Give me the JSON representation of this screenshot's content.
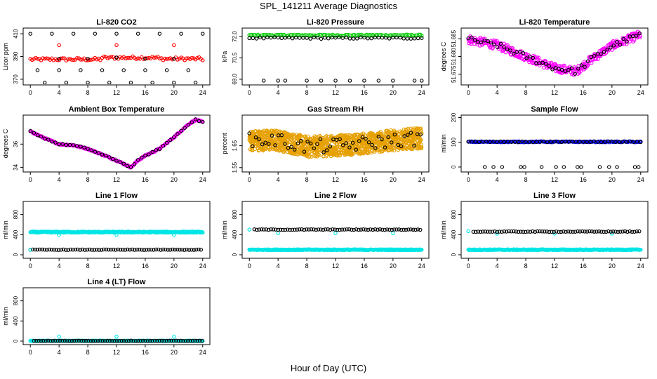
{
  "figure": {
    "title": "SPL_141211  Average Diagnostics",
    "xlabel": "Hour of Day (UTC)"
  },
  "chart_data": [
    {
      "type": "scatter",
      "title": "Li-820 CO2",
      "ylabel": "Licor ppm",
      "xlim": [
        -1,
        25
      ],
      "ylim": [
        365,
        415
      ],
      "xticks": [
        "0",
        "4",
        "8",
        "12",
        "16",
        "20",
        "24"
      ],
      "yticks": [
        "370",
        "390",
        "410"
      ],
      "grid": false,
      "series": [
        {
          "color": "#ff0000",
          "pattern": {
            "kind": "band",
            "x0": 0,
            "x1": 24,
            "step": 0.25,
            "base": 387.5,
            "amp": 2.0,
            "noise": 1.3,
            "segments": [
              [
                0,
                10,
                387.5
              ],
              [
                10,
                18,
                389
              ],
              [
                18,
                24,
                388
              ]
            ]
          }
        },
        {
          "color": "#ff0000",
          "points": [
            [
              4,
              400
            ],
            [
              12,
              400
            ],
            [
              20,
              400
            ]
          ]
        },
        {
          "color": "#000000",
          "pattern": {
            "kind": "levels",
            "x0": 0,
            "x1": 24,
            "step": 1.0,
            "levels": [
              410,
              378,
              367
            ]
          }
        },
        {
          "color": "#000000",
          "points": [
            [
              4,
              388
            ],
            [
              8,
              388
            ],
            [
              12,
              389
            ],
            [
              16,
              388
            ],
            [
              20,
              388
            ]
          ]
        }
      ]
    },
    {
      "type": "scatter",
      "title": "Li-820 Pressure",
      "ylabel": "kPa",
      "xlim": [
        -1,
        25
      ],
      "ylim": [
        68.6,
        72.6
      ],
      "xticks": [
        "0",
        "4",
        "8",
        "12",
        "16",
        "20",
        "24"
      ],
      "yticks": [
        "69.0",
        "70.5",
        "72.0"
      ],
      "grid": false,
      "series": [
        {
          "color": "#00cc00",
          "pattern": {
            "kind": "band",
            "x0": 0,
            "x1": 24,
            "step": 0.2,
            "base": 72.1,
            "amp": 0.05,
            "noise": 0.04
          }
        },
        {
          "color": "#000000",
          "pattern": {
            "kind": "band",
            "x0": 0,
            "x1": 24,
            "step": 0.5,
            "base": 71.9,
            "amp": 0.05,
            "noise": 0.06
          }
        },
        {
          "color": "#000000",
          "points": [
            [
              2,
              68.9
            ],
            [
              4,
              68.9
            ],
            [
              5,
              68.9
            ],
            [
              8,
              68.9
            ],
            [
              10,
              68.9
            ],
            [
              12,
              68.9
            ],
            [
              14,
              68.9
            ],
            [
              16,
              68.9
            ],
            [
              18,
              68.9
            ],
            [
              20,
              68.9
            ],
            [
              23,
              68.9
            ],
            [
              24,
              68.9
            ]
          ]
        }
      ]
    },
    {
      "type": "scatter",
      "title": "Li-820 Temperature",
      "ylabel": "degrees C",
      "xlim": [
        -1,
        25
      ],
      "ylim": [
        51.672,
        51.688
      ],
      "xticks": [
        "0",
        "4",
        "8",
        "12",
        "16",
        "20",
        "24"
      ],
      "yticks": [
        "51.675",
        "51.680",
        "51.685"
      ],
      "grid": false,
      "series": [
        {
          "color": "#ff00ff",
          "pattern": {
            "kind": "curve",
            "x0": 0,
            "x1": 24,
            "step": 0.07,
            "curve": [
              [
                0,
                51.6848
              ],
              [
                4,
                51.6832
              ],
              [
                8,
                51.68
              ],
              [
                12,
                51.6768
              ],
              [
                15,
                51.6758
              ],
              [
                17,
                51.679
              ],
              [
                20,
                51.683
              ],
              [
                24,
                51.6862
              ]
            ],
            "noise": 0.0024
          }
        },
        {
          "color": "#000000",
          "pattern": {
            "kind": "curve",
            "x0": 0,
            "x1": 24,
            "step": 0.45,
            "curve": [
              [
                0,
                51.6848
              ],
              [
                4,
                51.6832
              ],
              [
                8,
                51.68
              ],
              [
                12,
                51.6768
              ],
              [
                15,
                51.6758
              ],
              [
                17,
                51.679
              ],
              [
                20,
                51.683
              ],
              [
                24,
                51.6862
              ]
            ],
            "noise": 0.0016
          }
        }
      ]
    },
    {
      "type": "scatter",
      "title": "Ambient Box Temperature",
      "ylabel": "degrees C",
      "xlim": [
        -1,
        25
      ],
      "ylim": [
        33.6,
        38.5
      ],
      "xticks": [
        "0",
        "4",
        "8",
        "12",
        "16",
        "20",
        "24"
      ],
      "yticks": [
        "34",
        "36"
      ],
      "grid": false,
      "series": [
        {
          "color": "#ff00ff",
          "pattern": {
            "kind": "curve",
            "x0": 0,
            "x1": 24,
            "step": 0.1,
            "curve": [
              [
                0,
                37.1
              ],
              [
                2,
                36.5
              ],
              [
                4,
                36.0
              ],
              [
                6,
                35.9
              ],
              [
                8,
                35.6
              ],
              [
                10,
                35.1
              ],
              [
                12,
                34.6
              ],
              [
                14,
                34.0
              ],
              [
                15,
                34.6
              ],
              [
                16,
                35.0
              ],
              [
                18,
                35.6
              ],
              [
                20,
                36.6
              ],
              [
                22,
                37.7
              ],
              [
                23,
                38.1
              ],
              [
                24,
                37.9
              ]
            ],
            "noise": 0.12
          }
        },
        {
          "color": "#000000",
          "pattern": {
            "kind": "curve",
            "x0": 0,
            "x1": 24,
            "step": 0.5,
            "curve": [
              [
                0,
                37.1
              ],
              [
                2,
                36.5
              ],
              [
                4,
                36.0
              ],
              [
                6,
                35.9
              ],
              [
                8,
                35.6
              ],
              [
                10,
                35.1
              ],
              [
                12,
                34.6
              ],
              [
                14,
                34.0
              ],
              [
                15,
                34.6
              ],
              [
                16,
                35.0
              ],
              [
                18,
                35.6
              ],
              [
                20,
                36.6
              ],
              [
                22,
                37.7
              ],
              [
                23,
                38.1
              ],
              [
                24,
                37.9
              ]
            ],
            "noise": 0.08
          }
        }
      ]
    },
    {
      "type": "scatter",
      "title": "Gas Stream RH",
      "ylabel": "percent",
      "xlim": [
        -1,
        25
      ],
      "ylim": [
        1.53,
        1.79
      ],
      "xticks": [
        "0",
        "4",
        "8",
        "12",
        "16",
        "20",
        "24"
      ],
      "yticks": [
        "1.55",
        "1.65"
      ],
      "grid": false,
      "series": [
        {
          "color": "#e6a000",
          "pattern": {
            "kind": "curve",
            "x0": 0,
            "x1": 24,
            "step": 0.02,
            "curve": [
              [
                0,
                1.675
              ],
              [
                4,
                1.675
              ],
              [
                8,
                1.645
              ],
              [
                12,
                1.65
              ],
              [
                16,
                1.66
              ],
              [
                20,
                1.675
              ],
              [
                24,
                1.685
              ]
            ],
            "noise": 0.095
          }
        },
        {
          "color": "#000000",
          "pattern": {
            "kind": "curve",
            "x0": 0,
            "x1": 24,
            "step": 0.45,
            "curve": [
              [
                0,
                1.675
              ],
              [
                4,
                1.675
              ],
              [
                8,
                1.645
              ],
              [
                12,
                1.65
              ],
              [
                16,
                1.66
              ],
              [
                20,
                1.675
              ],
              [
                24,
                1.685
              ]
            ],
            "noise": 0.065
          }
        }
      ]
    },
    {
      "type": "scatter",
      "title": "Sample Flow",
      "ylabel": "ml/min",
      "xlim": [
        -1,
        25
      ],
      "ylim": [
        -20,
        210
      ],
      "xticks": [
        "0",
        "4",
        "8",
        "12",
        "16",
        "20",
        "24"
      ],
      "yticks": [
        "0",
        "100",
        "200"
      ],
      "grid": false,
      "series": [
        {
          "color": "#0000ff",
          "pattern": {
            "kind": "band",
            "x0": 0,
            "x1": 24,
            "step": 0.15,
            "base": 102,
            "amp": 0,
            "noise": 2
          }
        },
        {
          "color": "#000000",
          "pattern": {
            "kind": "band",
            "x0": 0,
            "x1": 24,
            "step": 0.5,
            "base": 102,
            "amp": 0,
            "noise": 1.5
          }
        },
        {
          "color": "#000000",
          "points": [
            [
              2.3,
              0
            ],
            [
              3.5,
              0
            ],
            [
              4.7,
              0
            ],
            [
              7.3,
              0
            ],
            [
              7.8,
              0
            ],
            [
              10.2,
              0
            ],
            [
              12.2,
              0
            ],
            [
              13.3,
              0
            ],
            [
              15.2,
              0
            ],
            [
              15.7,
              0
            ],
            [
              18.3,
              0
            ],
            [
              19.6,
              0
            ],
            [
              20.7,
              0
            ],
            [
              23.2,
              0
            ],
            [
              23.7,
              0
            ]
          ]
        }
      ]
    },
    {
      "type": "scatter",
      "title": "Line 1 Flow",
      "ylabel": "ml/min",
      "xlim": [
        -1,
        25
      ],
      "ylim": [
        -70,
        1060
      ],
      "xticks": [
        "0",
        "4",
        "8",
        "12",
        "16",
        "20",
        "24"
      ],
      "yticks": [
        "0",
        "400",
        "800"
      ],
      "grid": false,
      "series": [
        {
          "color": "#00e5e5",
          "pattern": {
            "kind": "band",
            "x0": 0,
            "x1": 24,
            "step": 0.08,
            "base": 450,
            "amp": 0,
            "noise": 12
          }
        },
        {
          "color": "#00e5e5",
          "points": [
            [
              4,
              395
            ],
            [
              12,
              395
            ],
            [
              20,
              395
            ]
          ]
        },
        {
          "color": "#000000",
          "pattern": {
            "kind": "band",
            "x0": 0,
            "x1": 24,
            "step": 0.33,
            "base": 100,
            "amp": 0,
            "noise": 5
          }
        },
        {
          "color": "#00e5e5",
          "points": [
            [
              0,
              100
            ]
          ]
        }
      ]
    },
    {
      "type": "scatter",
      "title": "Line 2 Flow",
      "ylabel": "ml/min",
      "xlim": [
        -1,
        25
      ],
      "ylim": [
        -70,
        1060
      ],
      "xticks": [
        "0",
        "4",
        "8",
        "12",
        "16",
        "20",
        "24"
      ],
      "yticks": [
        "0",
        "400",
        "800"
      ],
      "grid": false,
      "series": [
        {
          "color": "#00e5e5",
          "pattern": {
            "kind": "band",
            "x0": 0,
            "x1": 24,
            "step": 0.08,
            "base": 100,
            "amp": 0,
            "noise": 8
          }
        },
        {
          "color": "#00e5e5",
          "points": [
            [
              0,
              500
            ],
            [
              4,
              430
            ],
            [
              12,
              430
            ],
            [
              20,
              430
            ]
          ]
        },
        {
          "color": "#000000",
          "pattern": {
            "kind": "band",
            "x0": 0.7,
            "x1": 24,
            "step": 0.33,
            "base": 500,
            "amp": 0,
            "noise": 6
          }
        }
      ]
    },
    {
      "type": "scatter",
      "title": "Line 3 Flow",
      "ylabel": "ml/min",
      "xlim": [
        -1,
        25
      ],
      "ylim": [
        -70,
        1060
      ],
      "xticks": [
        "0",
        "4",
        "8",
        "12",
        "16",
        "20",
        "24"
      ],
      "yticks": [
        "0",
        "400",
        "800"
      ],
      "grid": false,
      "series": [
        {
          "color": "#00e5e5",
          "pattern": {
            "kind": "band",
            "x0": 0,
            "x1": 24,
            "step": 0.08,
            "base": 100,
            "amp": 0,
            "noise": 8
          }
        },
        {
          "color": "#00e5e5",
          "points": [
            [
              0,
              470
            ],
            [
              4,
              420
            ],
            [
              12,
              420
            ],
            [
              20,
              420
            ]
          ]
        },
        {
          "color": "#000000",
          "pattern": {
            "kind": "band",
            "x0": 0.7,
            "x1": 24,
            "step": 0.33,
            "base": 460,
            "amp": 0,
            "noise": 6
          }
        }
      ]
    },
    {
      "type": "scatter",
      "title": "Line 4 (LT) Flow",
      "ylabel": "ml/min",
      "xlim": [
        -1,
        25
      ],
      "ylim": [
        -70,
        1060
      ],
      "xticks": [
        "0",
        "4",
        "8",
        "12",
        "16",
        "20",
        "24"
      ],
      "yticks": [
        "0",
        "400",
        "800"
      ],
      "grid": false,
      "series": [
        {
          "color": "#00e5e5",
          "pattern": {
            "kind": "band",
            "x0": 0,
            "x1": 24,
            "step": 0.08,
            "base": 5,
            "amp": 0,
            "noise": 5
          }
        },
        {
          "color": "#00e5e5",
          "points": [
            [
              4,
              90
            ],
            [
              12,
              90
            ],
            [
              20,
              90
            ]
          ]
        },
        {
          "color": "#000000",
          "pattern": {
            "kind": "band",
            "x0": 0.5,
            "x1": 24,
            "step": 0.33,
            "base": 5,
            "amp": 0,
            "noise": 4
          }
        }
      ]
    }
  ]
}
